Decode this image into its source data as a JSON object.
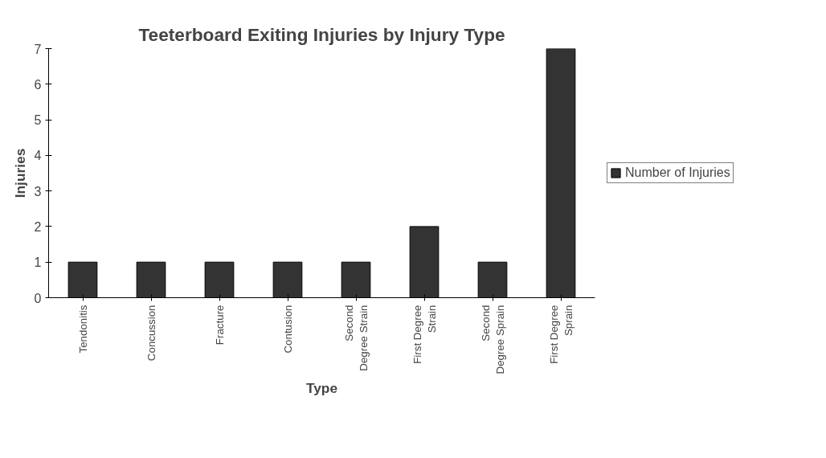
{
  "chart_data": {
    "type": "bar",
    "title": "Teeterboard Exiting Injuries by Injury Type",
    "xlabel": "Type",
    "ylabel": "Injuries",
    "categories": [
      "Tendonitis",
      "Concussion",
      "Fracture",
      "Contusion",
      "Second\nDegree Strain",
      "First Degree\nStrain",
      "Second\nDegree Sprain",
      "First Degree\nSprain"
    ],
    "series": [
      {
        "name": "Number of Injuries",
        "color": "#333333",
        "values": [
          1,
          1,
          1,
          1,
          1,
          2,
          1,
          7
        ]
      }
    ],
    "ylim": [
      0,
      7
    ],
    "yticks": [
      0,
      1,
      2,
      3,
      4,
      5,
      6,
      7
    ],
    "grid": false,
    "legend": "right"
  }
}
